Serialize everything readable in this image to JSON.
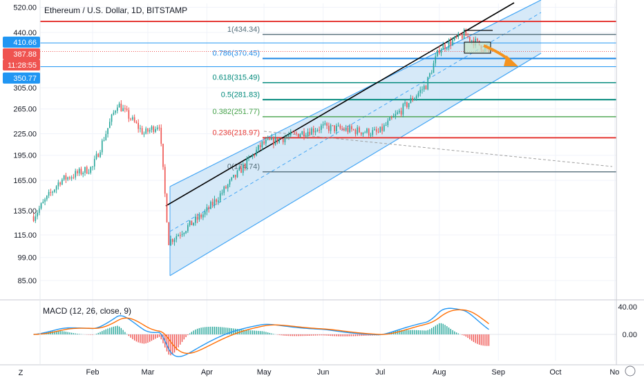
{
  "title": "Ethereum / U.S. Dollar, 1D, BITSTAMP",
  "colors": {
    "up": "#26a69a",
    "down": "#ef5350",
    "channel_fill": "#cfe5f7",
    "channel_line": "#42a5f5",
    "fib_red": "#e53935",
    "fib_teal": "#00897b",
    "fib_green": "#43a047",
    "fib_lightgreen": "#81c784",
    "fib_blue": "#1e88e5",
    "fib_grey": "#546e7a",
    "macd_line": "#2196f3",
    "signal_line": "#ff6d00",
    "arrow": "#f5931f"
  },
  "price_axis": {
    "ticks": [
      "520.00",
      "440.00",
      "305.00",
      "265.00",
      "225.00",
      "195.00",
      "165.00",
      "135.00",
      "115.00",
      "99.00",
      "85.00"
    ],
    "badges": [
      {
        "text": "410.66",
        "color": "#2196f3"
      },
      {
        "text": "387.88",
        "color": "#ef5350"
      },
      {
        "text": "11:28:55",
        "color": "#ef5350"
      },
      {
        "text": "350.77",
        "color": "#2196f3"
      }
    ]
  },
  "macd_axis": {
    "ticks": [
      "40.00",
      "0.00"
    ]
  },
  "time_axis": {
    "labels": [
      "Feb",
      "Mar",
      "Apr",
      "May",
      "Jun",
      "Jul",
      "Aug",
      "Sep",
      "Oct",
      "No"
    ]
  },
  "macd_label": "MACD (12, 26, close, 9)",
  "fib_levels": [
    {
      "label": "1(434.34)",
      "price": 434.34,
      "color": "fib_grey"
    },
    {
      "label": "0.786(370.45)",
      "price": 370.45,
      "color": "fib_blue"
    },
    {
      "label": "0.618(315.49)",
      "price": 315.49,
      "color": "fib_teal"
    },
    {
      "label": "0.5(281.83)",
      "price": 281.83,
      "color": "fib_teal"
    },
    {
      "label": "0.382(251.77)",
      "price": 251.77,
      "color": "fib_green"
    },
    {
      "label": "0.236(218.97)",
      "price": 218.97,
      "color": "fib_red"
    },
    {
      "label": "0(174.74)",
      "price": 174.74,
      "color": "fib_grey"
    }
  ],
  "chart_data": {
    "type": "candlestick",
    "title": "Ethereum / U.S. Dollar, 1D, BITSTAMP",
    "y_scale": "log",
    "y_range": [
      80,
      530
    ],
    "x_range": [
      "2020-01-01",
      "2020-11-01"
    ],
    "approx_close_path": [
      {
        "date": "2020-01-01",
        "close": 130
      },
      {
        "date": "2020-01-15",
        "close": 165
      },
      {
        "date": "2020-02-01",
        "close": 180
      },
      {
        "date": "2020-02-14",
        "close": 275
      },
      {
        "date": "2020-02-28",
        "close": 225
      },
      {
        "date": "2020-03-07",
        "close": 240
      },
      {
        "date": "2020-03-12",
        "close": 110
      },
      {
        "date": "2020-03-31",
        "close": 133
      },
      {
        "date": "2020-04-30",
        "close": 210
      },
      {
        "date": "2020-05-31",
        "close": 235
      },
      {
        "date": "2020-06-30",
        "close": 226
      },
      {
        "date": "2020-07-25",
        "close": 310
      },
      {
        "date": "2020-08-01",
        "close": 395
      },
      {
        "date": "2020-08-14",
        "close": 434
      },
      {
        "date": "2020-08-27",
        "close": 387.88
      }
    ],
    "last_price": 387.88,
    "highlight_levels": [
      410.66,
      350.77
    ],
    "macd": {
      "label": "MACD (12, 26, close, 9)",
      "y_range": [
        -30,
        50
      ]
    }
  }
}
